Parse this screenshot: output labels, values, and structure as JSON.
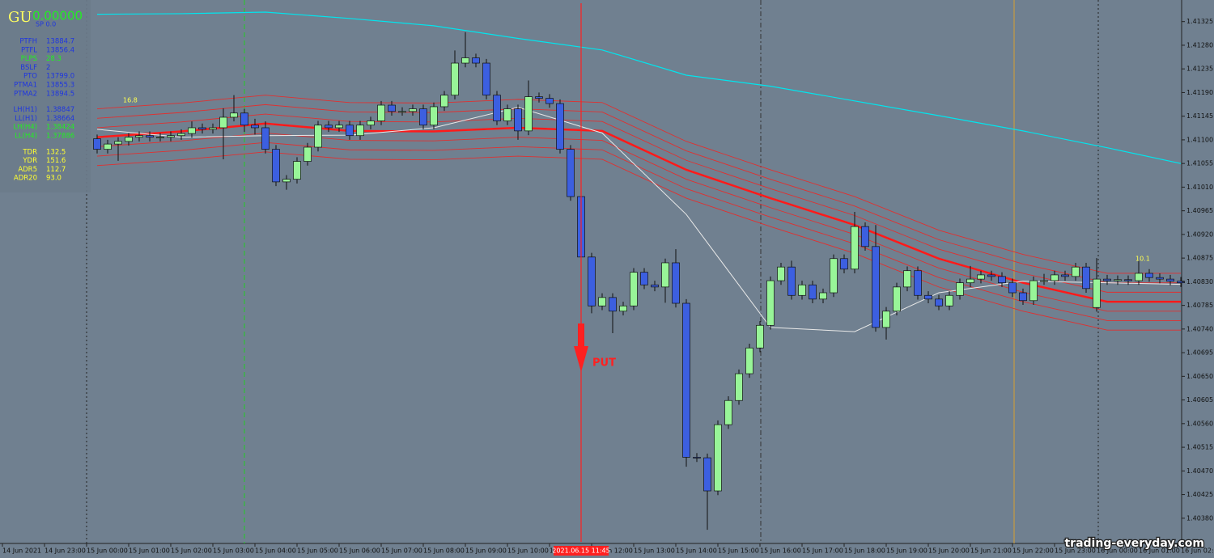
{
  "chart_data": {
    "type": "candlestick",
    "up_color": "#98f598",
    "down_color": "#3c5fe0",
    "ylim": [
      1.40332,
      1.41363
    ],
    "yticks": [
      1.41325,
      {
        "value": 1.4128,
        "label": "1.41280"
      },
      1.41235,
      {
        "value": 1.4119,
        "label": "1.41190"
      },
      1.41145,
      {
        "value": 1.411,
        "label": "1.41100"
      },
      1.41055,
      {
        "value": 1.4101,
        "label": "1.41010"
      },
      1.40965,
      {
        "value": 1.4092,
        "label": "1.40920"
      },
      1.40875,
      {
        "value": 1.4083,
        "label": "1.40830"
      },
      1.40785,
      {
        "value": 1.4074,
        "label": "1.40740"
      },
      1.40695,
      {
        "value": 1.4065,
        "label": "1.40650"
      },
      1.40605,
      {
        "value": 1.4056,
        "label": "1.40560"
      },
      1.40515,
      {
        "value": 1.4047,
        "label": "1.40470"
      },
      1.40425,
      {
        "value": 1.4038,
        "label": "1.40380"
      }
    ],
    "x_tick_labels": [
      "14 Jun 2021",
      "14 Jun 23:00",
      "15 Jun 00:00",
      "15 Jun 01:00",
      "15 Jun 02:00",
      "15 Jun 03:00",
      "15 Jun 04:00",
      "15 Jun 05:00",
      "15 Jun 06:00",
      "15 Jun 07:00",
      "15 Jun 08:00",
      "15 Jun 09:00",
      "15 Jun 10:00",
      "15 Jun 11:00",
      "15 Jun 12:00",
      "15 Jun 13:00",
      "15 Jun 14:00",
      "15 Jun 15:00",
      "15 Jun 16:00",
      "15 Jun 17:00",
      "15 Jun 18:00",
      "15 Jun 19:00",
      "15 Jun 20:00",
      "15 Jun 21:00",
      "15 Jun 22:00",
      "15 Jun 23:00",
      "16 Jun 00:00",
      "16 Jun 01:00",
      "16 Jun 02:00"
    ],
    "open": [
      1.41102,
      1.41082,
      1.41092,
      1.41097,
      1.41105,
      1.41108,
      1.41105,
      1.41105,
      1.41108,
      1.41112,
      1.41123,
      1.4112,
      1.41123,
      1.41143,
      1.41151,
      1.41128,
      1.41123,
      1.41082,
      1.4102,
      1.41025,
      1.41059,
      1.41086,
      1.41128,
      1.41123,
      1.41128,
      1.41108,
      1.41128,
      1.41136,
      1.41166,
      1.41154,
      1.41154,
      1.41159,
      1.41128,
      1.41163,
      1.41185,
      1.41246,
      1.41256,
      1.41246,
      1.41185,
      1.41136,
      1.41159,
      1.41117,
      1.41182,
      1.41179,
      1.41169,
      1.41082,
      1.40992,
      1.40877,
      1.40784,
      1.408,
      1.40774,
      1.40784,
      1.40848,
      1.40824,
      1.4082,
      1.40866,
      1.40789,
      1.40496,
      1.40495,
      1.40432,
      1.40558,
      1.40604,
      1.40655,
      1.40704,
      1.40747,
      1.40832,
      1.40858,
      1.40804,
      1.40824,
      1.40797,
      1.40809,
      1.40874,
      1.40854,
      1.40935,
      1.40897,
      1.40743,
      1.40774,
      1.4082,
      1.40851,
      1.40804,
      1.40797,
      1.40784,
      1.40804,
      1.40828,
      1.40835,
      1.40843,
      1.4084,
      1.40828,
      1.40809,
      1.40794,
      1.40832,
      1.40832,
      1.40843,
      1.4084,
      1.40858,
      1.40781,
      1.40835,
      1.40832,
      1.40834,
      1.40832,
      1.40846,
      1.40838,
      1.40835,
      1.40831
    ],
    "high": [
      1.4111,
      1.411,
      1.41105,
      1.41113,
      1.41116,
      1.41116,
      1.41113,
      1.41116,
      1.4112,
      1.41135,
      1.41131,
      1.41131,
      1.4116,
      1.41185,
      1.41159,
      1.4114,
      1.41135,
      1.4109,
      1.41033,
      1.41067,
      1.41094,
      1.41136,
      1.41136,
      1.41136,
      1.41136,
      1.41136,
      1.41144,
      1.41174,
      1.41174,
      1.41162,
      1.41167,
      1.41167,
      1.41171,
      1.41193,
      1.4127,
      1.41305,
      1.41264,
      1.41254,
      1.41193,
      1.41167,
      1.41167,
      1.41213,
      1.4119,
      1.41187,
      1.41177,
      1.4109,
      1.41,
      1.40885,
      1.40808,
      1.40808,
      1.40792,
      1.40856,
      1.40856,
      1.40832,
      1.40874,
      1.40892,
      1.40797,
      1.40504,
      1.40503,
      1.40566,
      1.40612,
      1.40663,
      1.40712,
      1.40755,
      1.4084,
      1.40866,
      1.4087,
      1.40832,
      1.40832,
      1.40817,
      1.40882,
      1.40882,
      1.40963,
      1.40943,
      1.40938,
      1.40782,
      1.40828,
      1.40859,
      1.40859,
      1.40812,
      1.40805,
      1.40812,
      1.40836,
      1.4086,
      1.40851,
      1.40851,
      1.40848,
      1.40836,
      1.40817,
      1.4084,
      1.40845,
      1.40851,
      1.40851,
      1.40866,
      1.40866,
      1.40875,
      1.40843,
      1.40842,
      1.40842,
      1.4087,
      1.40854,
      1.40846,
      1.40843,
      1.40839
    ],
    "low": [
      1.41074,
      1.41074,
      1.4106,
      1.41089,
      1.41097,
      1.41097,
      1.41097,
      1.41097,
      1.411,
      1.41104,
      1.41112,
      1.41112,
      1.41063,
      1.41135,
      1.41115,
      1.4111,
      1.41074,
      1.41012,
      1.41005,
      1.41017,
      1.41051,
      1.41078,
      1.41115,
      1.41115,
      1.411,
      1.411,
      1.4112,
      1.41128,
      1.41146,
      1.41146,
      1.41146,
      1.4112,
      1.4112,
      1.41155,
      1.41177,
      1.41238,
      1.41238,
      1.41177,
      1.41128,
      1.41128,
      1.411,
      1.41109,
      1.41171,
      1.41161,
      1.41074,
      1.40984,
      1.40869,
      1.4077,
      1.40776,
      1.40732,
      1.40766,
      1.40776,
      1.40816,
      1.40812,
      1.4079,
      1.40781,
      1.40478,
      1.40487,
      1.40358,
      1.40424,
      1.4055,
      1.40596,
      1.40647,
      1.40696,
      1.40739,
      1.40824,
      1.40796,
      1.40796,
      1.40789,
      1.40789,
      1.40801,
      1.40846,
      1.40846,
      1.40889,
      1.40735,
      1.4072,
      1.40766,
      1.40812,
      1.40796,
      1.40789,
      1.40776,
      1.40776,
      1.40796,
      1.4082,
      1.40827,
      1.40832,
      1.4082,
      1.40801,
      1.40786,
      1.40786,
      1.40824,
      1.40824,
      1.40832,
      1.40832,
      1.40809,
      1.40773,
      1.40824,
      1.40824,
      1.40824,
      1.40824,
      1.4083,
      1.40827,
      1.40823,
      1.4082
    ],
    "close": [
      1.41082,
      1.41092,
      1.41097,
      1.41105,
      1.41108,
      1.41105,
      1.41105,
      1.41108,
      1.41112,
      1.41123,
      1.4112,
      1.41123,
      1.41143,
      1.41151,
      1.41128,
      1.41123,
      1.41082,
      1.4102,
      1.41025,
      1.41059,
      1.41086,
      1.41128,
      1.41123,
      1.41128,
      1.41108,
      1.41128,
      1.41136,
      1.41166,
      1.41154,
      1.41154,
      1.41159,
      1.41128,
      1.41163,
      1.41185,
      1.41246,
      1.41256,
      1.41246,
      1.41185,
      1.41136,
      1.41159,
      1.41117,
      1.41182,
      1.41179,
      1.41169,
      1.41082,
      1.40992,
      1.40877,
      1.40784,
      1.408,
      1.40774,
      1.40784,
      1.40848,
      1.40824,
      1.4082,
      1.40866,
      1.40789,
      1.40496,
      1.40495,
      1.40432,
      1.40558,
      1.40604,
      1.40655,
      1.40704,
      1.40747,
      1.40832,
      1.40858,
      1.40804,
      1.40824,
      1.40797,
      1.40809,
      1.40874,
      1.40854,
      1.40935,
      1.40897,
      1.40743,
      1.40774,
      1.4082,
      1.40851,
      1.40804,
      1.40797,
      1.40784,
      1.40804,
      1.40828,
      1.40835,
      1.40843,
      1.4084,
      1.40828,
      1.40809,
      1.40794,
      1.40832,
      1.40832,
      1.40843,
      1.4084,
      1.40858,
      1.40817,
      1.40835,
      1.40832,
      1.40834,
      1.40832,
      1.40846,
      1.40838,
      1.40835,
      1.40831,
      1.40828
    ],
    "indicators": [
      {
        "color": "#00e5ee",
        "width": 1.2,
        "x": [
          0,
          8,
          16,
          24,
          32,
          40,
          48,
          56,
          64,
          72,
          80,
          88,
          96,
          103
        ],
        "values": [
          1.41339,
          1.4134,
          1.41343,
          1.41331,
          1.41317,
          1.41293,
          1.41271,
          1.41223,
          1.41202,
          1.41174,
          1.41146,
          1.41117,
          1.41085,
          1.41055
        ]
      },
      {
        "color": "#ff1a1a",
        "width": 2.5,
        "x": [
          0,
          8,
          16,
          24,
          32,
          40,
          48,
          56,
          64,
          72,
          80,
          88,
          96,
          103
        ],
        "values": [
          1.41105,
          1.41116,
          1.41131,
          1.41117,
          1.41116,
          1.41123,
          1.41117,
          1.41043,
          1.40989,
          1.40938,
          1.40874,
          1.40828,
          1.40792,
          1.40792
        ]
      },
      {
        "color": "#e8e8e8",
        "width": 1,
        "x": [
          0,
          8,
          16,
          24,
          32,
          40,
          48,
          56,
          64,
          72,
          80,
          88,
          96,
          103
        ],
        "values": [
          1.4112,
          1.41105,
          1.41108,
          1.41109,
          1.41123,
          1.41162,
          1.41113,
          1.40958,
          1.40743,
          1.40735,
          1.40809,
          1.40831,
          1.40828,
          1.40825
        ]
      }
    ],
    "band_color": "#e03030",
    "band_offsets": [
      0.00018,
      0.00036,
      0.00054
    ],
    "signal": {
      "time": "2021.06.15 11:45",
      "label": "PUT",
      "color": "#ff2020"
    },
    "annotations": [
      "16.8",
      "10.1"
    ],
    "info_panel": {
      "symbol": "GU",
      "price": "0.00000",
      "spread": "SP  0.0",
      "rows": [
        {
          "label": "PTFH",
          "value": "13884.7",
          "color": "#1f36e0"
        },
        {
          "label": "PTFL",
          "value": "13856.4",
          "color": "#1f36e0"
        },
        {
          "label": "PLPS",
          "value": "28.3",
          "color": "#22ee22"
        },
        {
          "label": "BSLF",
          "value": "2",
          "color": "#1f36e0"
        },
        {
          "label": "PTO",
          "value": "13799.0",
          "color": "#1f36e0"
        },
        {
          "label": "PTMA1",
          "value": "13855.3",
          "color": "#1f36e0"
        },
        {
          "label": "PTMA2",
          "value": "13894.5",
          "color": "#1f36e0"
        },
        {
          "label": "LH(H1)",
          "value": "1.38847",
          "color": "#1f36e0"
        },
        {
          "label": "LL(H1)",
          "value": "1.38664",
          "color": "#1f36e0"
        },
        {
          "label": "LH(H4)",
          "value": "1.38424",
          "color": "#22ee22"
        },
        {
          "label": "LL(H4)",
          "value": "1.37886",
          "color": "#22ee22"
        },
        {
          "label": "TDR",
          "value": "132.5",
          "color": "#ffff30"
        },
        {
          "label": "YDR",
          "value": "151.6",
          "color": "#ffff30"
        },
        {
          "label": "ADR5",
          "value": "112.7",
          "color": "#ffff30"
        },
        {
          "label": "ADR20",
          "value": "93.0",
          "color": "#ffff30"
        }
      ]
    },
    "watermark": "trading-everyday.com"
  }
}
